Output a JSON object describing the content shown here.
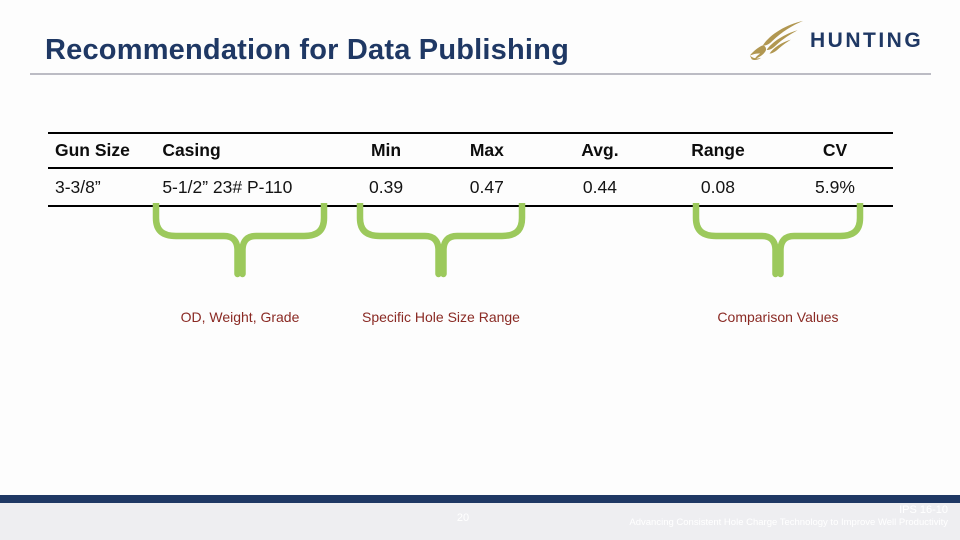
{
  "slide": {
    "title": "Recommendation for Data Publishing",
    "logo": {
      "brand": "HUNTING",
      "icon": "pheasant-bird-icon"
    },
    "table": {
      "columns": [
        "Gun Size",
        "Casing",
        "Min",
        "Max",
        "Avg.",
        "Range",
        "CV"
      ],
      "rows": [
        [
          "3-3/8”",
          "5-1/2” 23# P-110",
          "0.39",
          "0.47",
          "0.44",
          "0.08",
          "5.9%"
        ]
      ]
    },
    "annotations": [
      {
        "label": "OD, Weight, Grade",
        "points_to": "Casing"
      },
      {
        "label": "Specific Hole Size Range",
        "points_to": "Min–Max"
      },
      {
        "label": "Comparison Values",
        "points_to": "Range–CV"
      }
    ],
    "footer": {
      "page_number": "20",
      "doc_ref": "IPS 16-10",
      "tagline": "Advancing Consistent Hole Charge Technology to Improve Well Productivity"
    },
    "colors": {
      "accent_navy": "#1f3864",
      "brace_green": "#9cc95c",
      "caption_maroon": "#8a2a24",
      "logo_gold": "#b19751",
      "footer_strip": "#eeeef1"
    }
  }
}
